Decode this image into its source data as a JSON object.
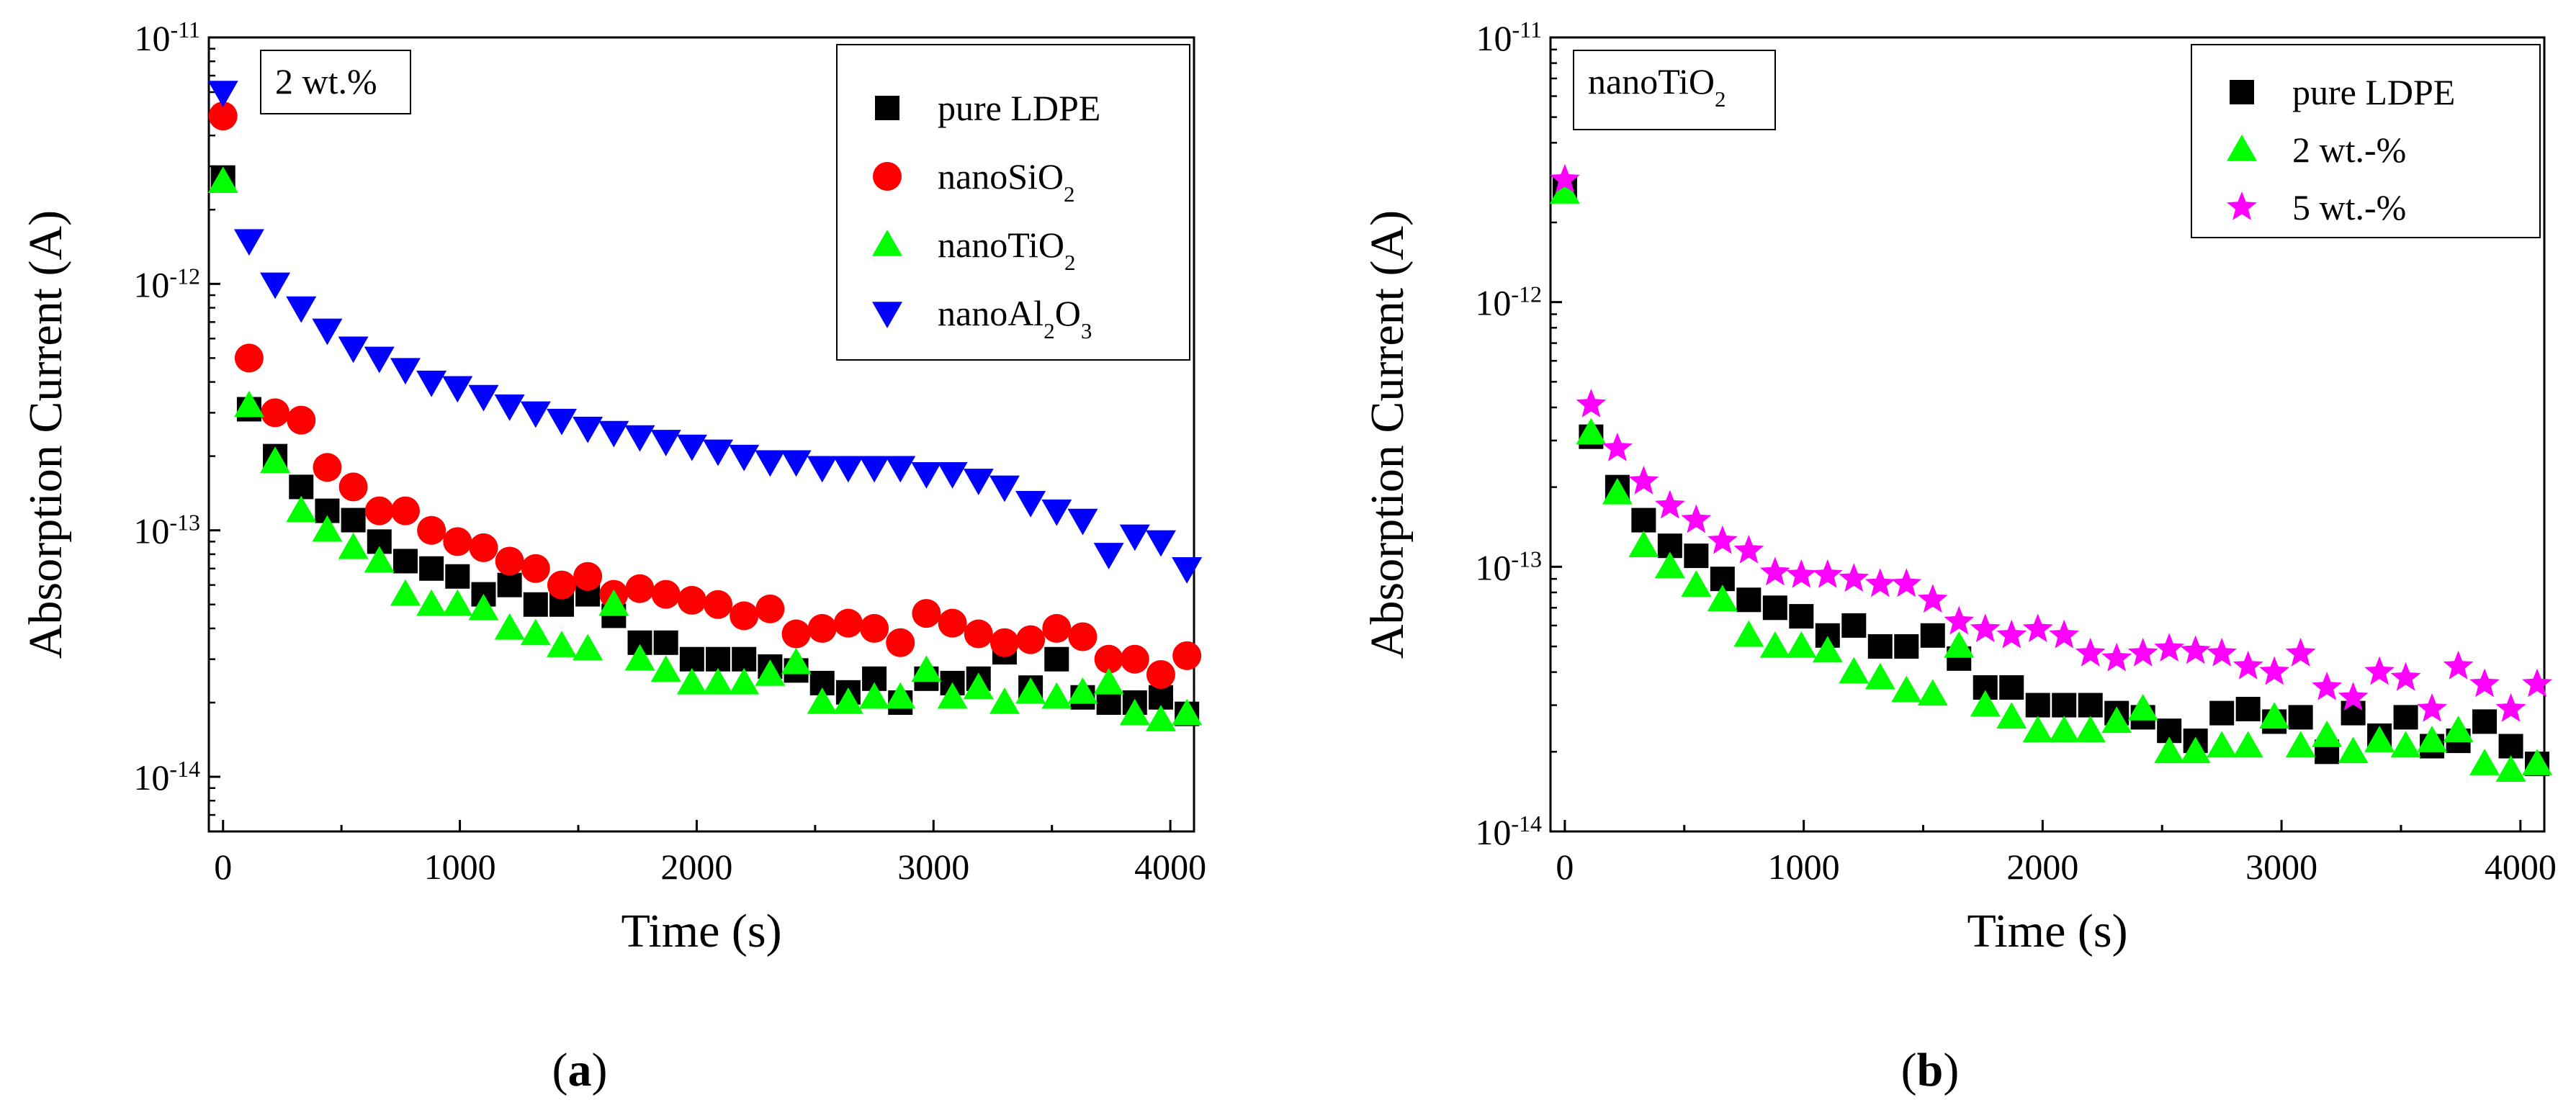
{
  "figure_labels": [
    "a",
    "b"
  ],
  "chart_data": [
    {
      "type": "scatter",
      "yscale": "log",
      "xlabel": "Time (s)",
      "ylabel": "Absorption Current (A)",
      "xlim": [
        -60,
        4100
      ],
      "ylim": [
        6e-15,
        1e-11
      ],
      "xticks": [
        0,
        1000,
        2000,
        3000,
        4000
      ],
      "yticks": [
        {
          "value": 1e-11,
          "base": "10",
          "exp": "-11"
        },
        {
          "value": 1e-12,
          "base": "10",
          "exp": "-12"
        },
        {
          "value": 1e-13,
          "base": "10",
          "exp": "-13"
        },
        {
          "value": 1e-14,
          "base": "10",
          "exp": "-14"
        }
      ],
      "annotation": {
        "parts": [
          {
            "t": "2 wt.%"
          }
        ]
      },
      "legend_position": "top-right",
      "series": [
        {
          "name": "pure LDPE",
          "label_parts": [
            {
              "t": "pure LDPE"
            }
          ],
          "marker": "square",
          "color": "#000000",
          "x": [
            0,
            110,
            220,
            330,
            440,
            550,
            660,
            770,
            880,
            990,
            1100,
            1210,
            1320,
            1430,
            1540,
            1650,
            1760,
            1870,
            1980,
            2090,
            2200,
            2310,
            2420,
            2530,
            2640,
            2750,
            2860,
            2970,
            3080,
            3190,
            3300,
            3410,
            3520,
            3630,
            3740,
            3850,
            3960,
            4070
          ],
          "y": [
            2.7e-12,
            3.1e-13,
            2e-13,
            1.5e-13,
            1.2e-13,
            1.1e-13,
            9e-14,
            7.5e-14,
            7e-14,
            6.5e-14,
            5.5e-14,
            6e-14,
            5e-14,
            5e-14,
            5.5e-14,
            4.5e-14,
            3.5e-14,
            3.5e-14,
            3e-14,
            3e-14,
            3e-14,
            2.8e-14,
            2.7e-14,
            2.4e-14,
            2.2e-14,
            2.5e-14,
            2e-14,
            2.5e-14,
            2.4e-14,
            2.5e-14,
            3.2e-14,
            2.3e-14,
            3e-14,
            2.1e-14,
            2e-14,
            2e-14,
            2.1e-14,
            1.8e-14
          ]
        },
        {
          "name": "nanoSiO2",
          "label_parts": [
            {
              "t": "nanoSiO"
            },
            {
              "t": "2",
              "sub": true
            }
          ],
          "marker": "circle",
          "color": "#ff0000",
          "x": [
            0,
            110,
            220,
            330,
            440,
            550,
            660,
            770,
            880,
            990,
            1100,
            1210,
            1320,
            1430,
            1540,
            1650,
            1760,
            1870,
            1980,
            2090,
            2200,
            2310,
            2420,
            2530,
            2640,
            2750,
            2860,
            2970,
            3080,
            3190,
            3300,
            3410,
            3520,
            3630,
            3740,
            3850,
            3960,
            4070
          ],
          "y": [
            4.8e-12,
            5e-13,
            3e-13,
            2.8e-13,
            1.8e-13,
            1.5e-13,
            1.2e-13,
            1.2e-13,
            1e-13,
            9e-14,
            8.5e-14,
            7.5e-14,
            7e-14,
            6e-14,
            6.5e-14,
            5.5e-14,
            5.8e-14,
            5.5e-14,
            5.2e-14,
            5e-14,
            4.5e-14,
            4.8e-14,
            3.8e-14,
            4e-14,
            4.2e-14,
            4e-14,
            3.5e-14,
            4.6e-14,
            4.2e-14,
            3.8e-14,
            3.5e-14,
            3.6e-14,
            4e-14,
            3.7e-14,
            3e-14,
            3e-14,
            2.6e-14,
            3.1e-14
          ]
        },
        {
          "name": "nanoTiO2",
          "label_parts": [
            {
              "t": "nanoTiO"
            },
            {
              "t": "2",
              "sub": true
            }
          ],
          "marker": "triangle-up",
          "color": "#00ff00",
          "x": [
            0,
            110,
            220,
            330,
            440,
            550,
            660,
            770,
            880,
            990,
            1100,
            1210,
            1320,
            1430,
            1540,
            1650,
            1760,
            1870,
            1980,
            2090,
            2200,
            2310,
            2420,
            2530,
            2640,
            2750,
            2860,
            2970,
            3080,
            3190,
            3300,
            3410,
            3520,
            3630,
            3740,
            3850,
            3960,
            4070
          ],
          "y": [
            2.6e-12,
            3.2e-13,
            1.9e-13,
            1.2e-13,
            1e-13,
            8.5e-14,
            7.5e-14,
            5.5e-14,
            5e-14,
            5e-14,
            4.8e-14,
            4e-14,
            3.8e-14,
            3.4e-14,
            3.3e-14,
            5e-14,
            3e-14,
            2.7e-14,
            2.4e-14,
            2.4e-14,
            2.4e-14,
            2.6e-14,
            2.9e-14,
            2e-14,
            2e-14,
            2.1e-14,
            2.1e-14,
            2.7e-14,
            2.1e-14,
            2.3e-14,
            2e-14,
            2.2e-14,
            2.1e-14,
            2.2e-14,
            2.4e-14,
            1.8e-14,
            1.7e-14,
            1.8e-14
          ]
        },
        {
          "name": "nanoAl2O3",
          "label_parts": [
            {
              "t": "nanoAl"
            },
            {
              "t": "2",
              "sub": true
            },
            {
              "t": "O"
            },
            {
              "t": "3",
              "sub": true
            }
          ],
          "marker": "triangle-down",
          "color": "#0000ff",
          "x": [
            0,
            110,
            220,
            330,
            440,
            550,
            660,
            770,
            880,
            990,
            1100,
            1210,
            1320,
            1430,
            1540,
            1650,
            1760,
            1870,
            1980,
            2090,
            2200,
            2310,
            2420,
            2530,
            2640,
            2750,
            2860,
            2970,
            3080,
            3190,
            3300,
            3410,
            3520,
            3630,
            3740,
            3850,
            3960,
            4070
          ],
          "y": [
            6e-12,
            1.5e-12,
            1e-12,
            8e-13,
            6.5e-13,
            5.5e-13,
            5e-13,
            4.5e-13,
            4e-13,
            3.8e-13,
            3.5e-13,
            3.2e-13,
            3e-13,
            2.8e-13,
            2.6e-13,
            2.5e-13,
            2.4e-13,
            2.3e-13,
            2.2e-13,
            2.1e-13,
            2e-13,
            1.9e-13,
            1.9e-13,
            1.8e-13,
            1.8e-13,
            1.8e-13,
            1.8e-13,
            1.7e-13,
            1.7e-13,
            1.6e-13,
            1.5e-13,
            1.3e-13,
            1.2e-13,
            1.1e-13,
            8e-14,
            9.5e-14,
            9e-14,
            7e-14
          ]
        }
      ]
    },
    {
      "type": "scatter",
      "yscale": "log",
      "xlabel": "Time (s)",
      "ylabel": "Absorption Current (A)",
      "xlim": [
        -60,
        4100
      ],
      "ylim": [
        1e-14,
        1e-11
      ],
      "xticks": [
        0,
        1000,
        2000,
        3000,
        4000
      ],
      "yticks": [
        {
          "value": 1e-11,
          "base": "10",
          "exp": "-11"
        },
        {
          "value": 1e-12,
          "base": "10",
          "exp": "-12"
        },
        {
          "value": 1e-13,
          "base": "10",
          "exp": "-13"
        },
        {
          "value": 1e-14,
          "base": "10",
          "exp": "-14"
        }
      ],
      "annotation": {
        "parts": [
          {
            "t": "nanoTiO"
          },
          {
            "t": "2",
            "sub": true
          }
        ]
      },
      "legend_position": "top-right",
      "series": [
        {
          "name": "pure LDPE",
          "label_parts": [
            {
              "t": "pure LDPE"
            }
          ],
          "marker": "square",
          "color": "#000000",
          "x": [
            0,
            110,
            220,
            330,
            440,
            550,
            660,
            770,
            880,
            990,
            1100,
            1210,
            1320,
            1430,
            1540,
            1650,
            1760,
            1870,
            1980,
            2090,
            2200,
            2310,
            2420,
            2530,
            2640,
            2750,
            2860,
            2970,
            3080,
            3190,
            3300,
            3410,
            3520,
            3630,
            3740,
            3850,
            3960,
            4070
          ],
          "y": [
            2.7e-12,
            3.1e-13,
            2e-13,
            1.5e-13,
            1.2e-13,
            1.1e-13,
            9e-14,
            7.5e-14,
            7e-14,
            6.5e-14,
            5.5e-14,
            6e-14,
            5e-14,
            5e-14,
            5.5e-14,
            4.5e-14,
            3.5e-14,
            3.5e-14,
            3e-14,
            3e-14,
            3e-14,
            2.8e-14,
            2.7e-14,
            2.4e-14,
            2.2e-14,
            2.8e-14,
            2.9e-14,
            2.6e-14,
            2.7e-14,
            2e-14,
            2.8e-14,
            2.3e-14,
            2.7e-14,
            2.1e-14,
            2.2e-14,
            2.6e-14,
            2.1e-14,
            1.8e-14
          ]
        },
        {
          "name": "2 wt.-%",
          "label_parts": [
            {
              "t": "2 wt.-%"
            }
          ],
          "marker": "triangle-up",
          "color": "#00ff00",
          "x": [
            0,
            110,
            220,
            330,
            440,
            550,
            660,
            770,
            880,
            990,
            1100,
            1210,
            1320,
            1430,
            1540,
            1650,
            1760,
            1870,
            1980,
            2090,
            2200,
            2310,
            2420,
            2530,
            2640,
            2750,
            2860,
            2970,
            3080,
            3190,
            3300,
            3410,
            3520,
            3630,
            3740,
            3850,
            3960,
            4070
          ],
          "y": [
            2.6e-12,
            3.2e-13,
            1.9e-13,
            1.2e-13,
            1e-13,
            8.5e-14,
            7.5e-14,
            5.5e-14,
            5e-14,
            5e-14,
            4.8e-14,
            4e-14,
            3.8e-14,
            3.4e-14,
            3.3e-14,
            5e-14,
            3e-14,
            2.7e-14,
            2.4e-14,
            2.4e-14,
            2.4e-14,
            2.6e-14,
            2.9e-14,
            2e-14,
            2e-14,
            2.1e-14,
            2.1e-14,
            2.7e-14,
            2.1e-14,
            2.3e-14,
            2e-14,
            2.2e-14,
            2.1e-14,
            2.2e-14,
            2.4e-14,
            1.8e-14,
            1.7e-14,
            1.8e-14
          ]
        },
        {
          "name": "5 wt.-%",
          "label_parts": [
            {
              "t": "5 wt.-%"
            }
          ],
          "marker": "star",
          "color": "#ff00ff",
          "x": [
            0,
            110,
            220,
            330,
            440,
            550,
            660,
            770,
            880,
            990,
            1100,
            1210,
            1320,
            1430,
            1540,
            1650,
            1760,
            1870,
            1980,
            2090,
            2200,
            2310,
            2420,
            2530,
            2640,
            2750,
            2860,
            2970,
            3080,
            3190,
            3300,
            3410,
            3520,
            3630,
            3740,
            3850,
            3960,
            4070
          ],
          "y": [
            2.9e-12,
            4.1e-13,
            2.8e-13,
            2.1e-13,
            1.7e-13,
            1.5e-13,
            1.25e-13,
            1.15e-13,
            9.5e-14,
            9.3e-14,
            9.3e-14,
            9e-14,
            8.6e-14,
            8.6e-14,
            7.5e-14,
            6.2e-14,
            5.8e-14,
            5.5e-14,
            5.8e-14,
            5.5e-14,
            4.7e-14,
            4.5e-14,
            4.7e-14,
            4.9e-14,
            4.8e-14,
            4.7e-14,
            4.2e-14,
            4e-14,
            4.7e-14,
            3.5e-14,
            3.2e-14,
            4e-14,
            3.8e-14,
            2.9e-14,
            4.2e-14,
            3.6e-14,
            2.9e-14,
            3.6e-14
          ]
        }
      ]
    }
  ]
}
